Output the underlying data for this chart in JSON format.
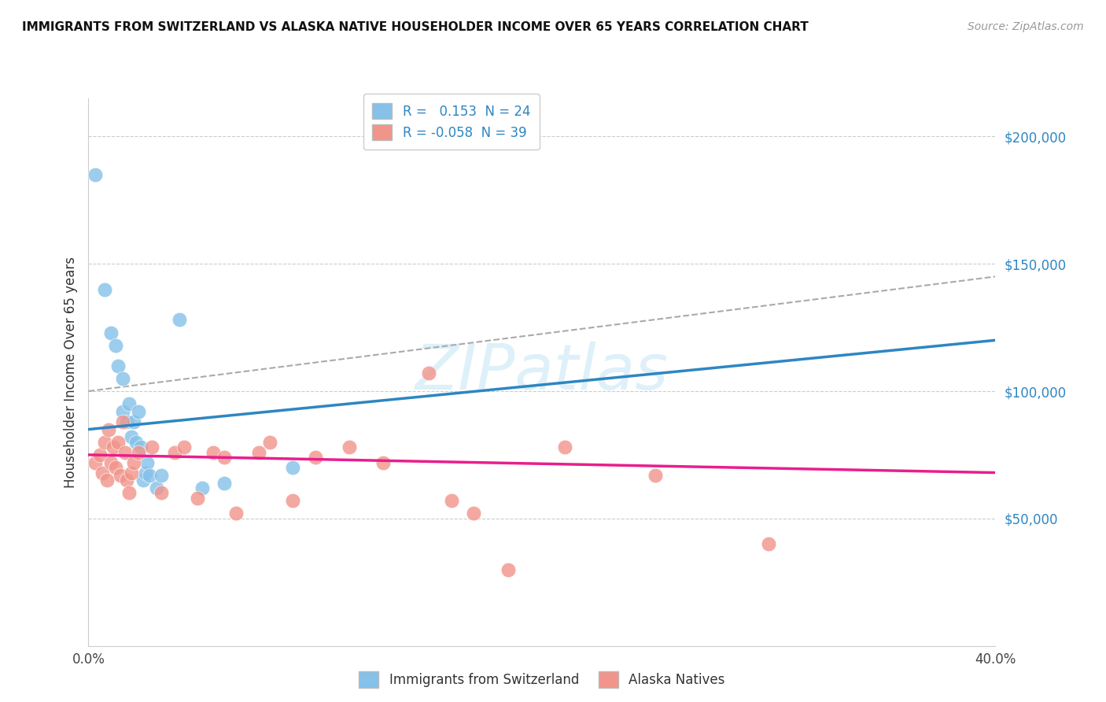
{
  "title": "IMMIGRANTS FROM SWITZERLAND VS ALASKA NATIVE HOUSEHOLDER INCOME OVER 65 YEARS CORRELATION CHART",
  "source": "Source: ZipAtlas.com",
  "ylabel": "Householder Income Over 65 years",
  "right_ytick_labels": [
    "$50,000",
    "$100,000",
    "$150,000",
    "$200,000"
  ],
  "right_ytick_values": [
    50000,
    100000,
    150000,
    200000
  ],
  "ylim": [
    0,
    215000
  ],
  "xlim": [
    0.0,
    0.4
  ],
  "watermark": "ZIPatlas",
  "blue_color": "#85C1E9",
  "pink_color": "#F1948A",
  "blue_line_color": "#2E86C1",
  "pink_line_color": "#E91E8C",
  "dashed_line_color": "#aaaaaa",
  "background_color": "#ffffff",
  "grid_color": "#cccccc",
  "swiss_data": [
    [
      0.003,
      185000
    ],
    [
      0.007,
      140000
    ],
    [
      0.01,
      123000
    ],
    [
      0.012,
      118000
    ],
    [
      0.013,
      110000
    ],
    [
      0.015,
      105000
    ],
    [
      0.015,
      92000
    ],
    [
      0.017,
      88000
    ],
    [
      0.018,
      95000
    ],
    [
      0.019,
      82000
    ],
    [
      0.02,
      88000
    ],
    [
      0.021,
      80000
    ],
    [
      0.022,
      92000
    ],
    [
      0.023,
      78000
    ],
    [
      0.024,
      65000
    ],
    [
      0.025,
      68000
    ],
    [
      0.026,
      72000
    ],
    [
      0.027,
      67000
    ],
    [
      0.03,
      62000
    ],
    [
      0.032,
      67000
    ],
    [
      0.04,
      128000
    ],
    [
      0.05,
      62000
    ],
    [
      0.06,
      64000
    ],
    [
      0.09,
      70000
    ]
  ],
  "alaska_data": [
    [
      0.003,
      72000
    ],
    [
      0.005,
      75000
    ],
    [
      0.006,
      68000
    ],
    [
      0.007,
      80000
    ],
    [
      0.008,
      65000
    ],
    [
      0.009,
      85000
    ],
    [
      0.01,
      72000
    ],
    [
      0.011,
      78000
    ],
    [
      0.012,
      70000
    ],
    [
      0.013,
      80000
    ],
    [
      0.014,
      67000
    ],
    [
      0.015,
      88000
    ],
    [
      0.016,
      76000
    ],
    [
      0.017,
      65000
    ],
    [
      0.018,
      60000
    ],
    [
      0.019,
      68000
    ],
    [
      0.02,
      72000
    ],
    [
      0.022,
      76000
    ],
    [
      0.028,
      78000
    ],
    [
      0.032,
      60000
    ],
    [
      0.038,
      76000
    ],
    [
      0.042,
      78000
    ],
    [
      0.048,
      58000
    ],
    [
      0.055,
      76000
    ],
    [
      0.06,
      74000
    ],
    [
      0.065,
      52000
    ],
    [
      0.075,
      76000
    ],
    [
      0.08,
      80000
    ],
    [
      0.09,
      57000
    ],
    [
      0.1,
      74000
    ],
    [
      0.115,
      78000
    ],
    [
      0.13,
      72000
    ],
    [
      0.15,
      107000
    ],
    [
      0.16,
      57000
    ],
    [
      0.17,
      52000
    ],
    [
      0.185,
      30000
    ],
    [
      0.21,
      78000
    ],
    [
      0.25,
      67000
    ],
    [
      0.3,
      40000
    ]
  ],
  "swiss_line_x0": 0.0,
  "swiss_line_y0": 85000,
  "swiss_line_x1": 0.4,
  "swiss_line_y1": 120000,
  "alaska_line_x0": 0.0,
  "alaska_line_y0": 75000,
  "alaska_line_x1": 0.4,
  "alaska_line_y1": 68000,
  "dashed_line_x0": 0.0,
  "dashed_line_y0": 100000,
  "dashed_line_x1": 0.4,
  "dashed_line_y1": 145000
}
